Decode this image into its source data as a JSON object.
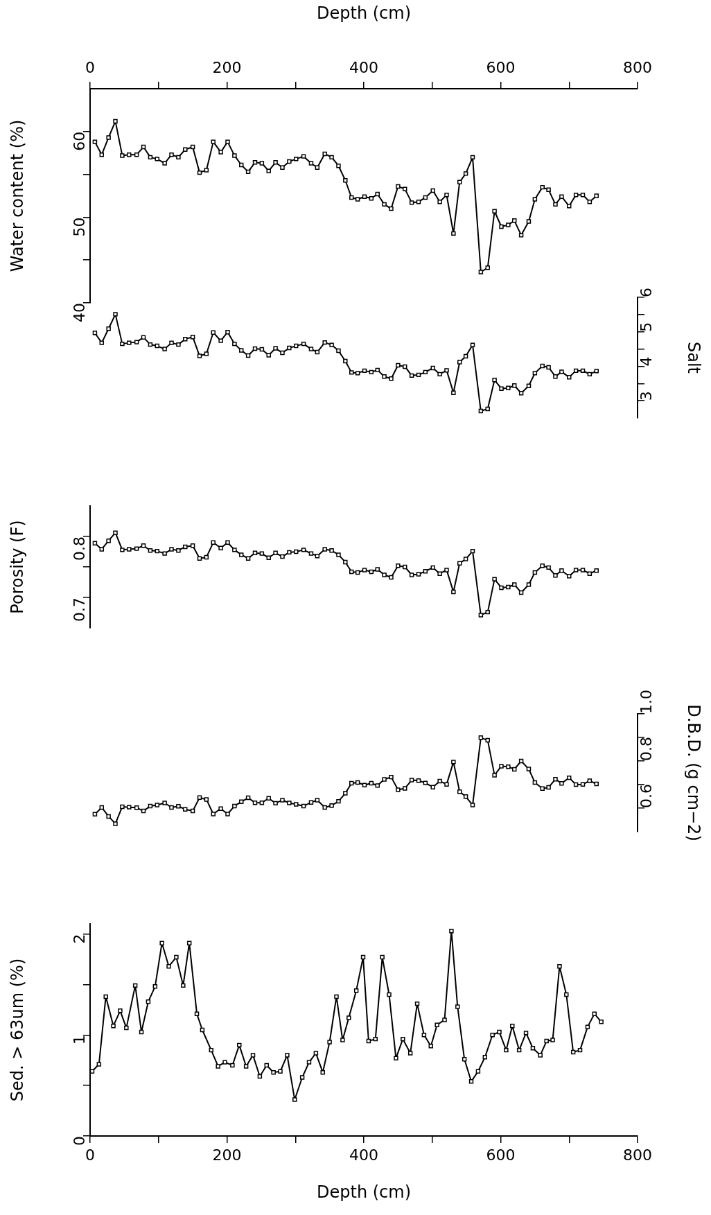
{
  "chart_data": [
    {
      "type": "line",
      "xlabel": "Depth (cm)",
      "ylabel": "Water content (%)",
      "xlim": [
        0,
        800
      ],
      "xticks": [
        0,
        {
          "value": 100,
          "label": null
        },
        200,
        {
          "value": 300,
          "label": null
        },
        400,
        {
          "value": 500,
          "label": null
        },
        600,
        {
          "value": 700,
          "label": null
        },
        800
      ],
      "ylim": [
        40,
        65
      ],
      "yticks": [
        40,
        {
          "value": 45,
          "label": null
        },
        50,
        {
          "value": 55,
          "label": null
        },
        60
      ],
      "marker": "square",
      "line_style": "solid",
      "legend": false,
      "grid": false,
      "x": [
        7,
        17,
        27,
        37,
        47,
        57,
        68,
        78,
        88,
        98,
        109,
        119,
        129,
        139,
        150,
        160,
        170,
        180,
        191,
        201,
        211,
        221,
        231,
        241,
        251,
        261,
        271,
        281,
        291,
        301,
        312,
        323,
        332,
        343,
        353,
        363,
        373,
        382,
        391,
        401,
        411,
        420,
        430,
        440,
        450,
        460,
        470,
        480,
        490,
        501,
        511,
        521,
        531,
        540,
        549,
        559,
        571,
        581,
        591,
        601,
        611,
        620,
        630,
        641,
        650,
        661,
        670,
        680,
        689,
        700,
        710,
        720,
        730,
        740
      ],
      "series": [
        {
          "color": "#000000",
          "values": [
            58.8,
            57.3,
            59.3,
            61.2,
            57.2,
            57.3,
            57.3,
            58.2,
            57.0,
            56.8,
            56.3,
            57.3,
            57.0,
            57.9,
            58.2,
            55.2,
            55.5,
            58.8,
            57.6,
            58.8,
            57.2,
            56.1,
            55.3,
            56.4,
            56.3,
            55.4,
            56.4,
            55.8,
            56.5,
            56.8,
            57.1,
            56.3,
            55.8,
            57.4,
            57.0,
            56.0,
            54.3,
            52.3,
            52.1,
            52.4,
            52.2,
            52.7,
            51.5,
            51.0,
            53.6,
            53.3,
            51.7,
            51.8,
            52.3,
            53.1,
            51.8,
            52.6,
            48.1,
            54.1,
            55.1,
            57.0,
            43.6,
            44.1,
            50.7,
            48.9,
            49.1,
            49.6,
            47.9,
            49.5,
            52.1,
            53.5,
            53.2,
            51.5,
            52.4,
            51.3,
            52.6,
            52.6,
            51.8,
            52.5
          ]
        }
      ]
    },
    {
      "type": "line",
      "y2label": "Salt",
      "xlim": [
        0,
        800
      ],
      "y2lim": [
        2.5,
        6
      ],
      "y2ticks": [
        3,
        {
          "value": 3.5,
          "label": null
        },
        4,
        {
          "value": 4.5,
          "label": null
        },
        5,
        {
          "value": 5.5,
          "label": null
        },
        6
      ],
      "tick_labels": "y",
      "marker": "square",
      "line_style": "solid",
      "legend": false,
      "grid": false,
      "x": [
        7,
        17,
        27,
        37,
        47,
        57,
        68,
        78,
        88,
        98,
        109,
        119,
        129,
        139,
        150,
        160,
        170,
        180,
        191,
        201,
        211,
        221,
        231,
        241,
        251,
        261,
        271,
        281,
        291,
        301,
        312,
        323,
        332,
        343,
        353,
        363,
        373,
        382,
        391,
        401,
        411,
        420,
        430,
        440,
        450,
        460,
        470,
        480,
        490,
        501,
        511,
        521,
        531,
        540,
        549,
        559,
        571,
        581,
        591,
        601,
        611,
        620,
        630,
        641,
        650,
        661,
        670,
        680,
        689,
        700,
        710,
        720,
        730,
        740
      ],
      "series": [
        {
          "color": "#000000",
          "axis": "y2",
          "values": [
            4.97,
            4.68,
            5.09,
            5.51,
            4.65,
            4.68,
            4.7,
            4.84,
            4.63,
            4.59,
            4.5,
            4.68,
            4.63,
            4.79,
            4.85,
            4.3,
            4.36,
            4.98,
            4.74,
            4.99,
            4.65,
            4.46,
            4.31,
            4.51,
            4.49,
            4.32,
            4.52,
            4.39,
            4.53,
            4.59,
            4.65,
            4.5,
            4.41,
            4.69,
            4.62,
            4.45,
            4.15,
            3.82,
            3.8,
            3.87,
            3.83,
            3.89,
            3.7,
            3.64,
            4.03,
            3.99,
            3.73,
            3.75,
            3.83,
            3.95,
            3.77,
            3.88,
            3.23,
            4.12,
            4.29,
            4.62,
            2.7,
            2.76,
            3.6,
            3.35,
            3.37,
            3.44,
            3.22,
            3.43,
            3.8,
            4.01,
            3.97,
            3.7,
            3.84,
            3.68,
            3.87,
            3.87,
            3.77,
            3.86
          ]
        }
      ]
    },
    {
      "type": "line",
      "ylabel": "Porosity (F)",
      "xlim": [
        0,
        800
      ],
      "ylim": [
        0.65,
        0.85
      ],
      "yticks": [
        0.7,
        {
          "value": 0.75,
          "label": null
        },
        0.8
      ],
      "tick_labels": "y",
      "marker": "square",
      "line_style": "solid",
      "legend": false,
      "grid": false,
      "x": [
        7,
        17,
        27,
        37,
        47,
        57,
        68,
        78,
        88,
        98,
        109,
        119,
        129,
        139,
        150,
        160,
        170,
        180,
        191,
        201,
        211,
        221,
        231,
        241,
        251,
        261,
        271,
        281,
        291,
        301,
        312,
        323,
        332,
        343,
        353,
        363,
        373,
        382,
        391,
        401,
        411,
        420,
        430,
        440,
        450,
        460,
        470,
        480,
        490,
        501,
        511,
        521,
        531,
        540,
        549,
        559,
        571,
        581,
        591,
        601,
        611,
        620,
        630,
        641,
        650,
        661,
        670,
        680,
        689,
        700,
        710,
        720,
        730,
        740
      ],
      "series": [
        {
          "color": "#000000",
          "values": [
            0.789,
            0.779,
            0.793,
            0.806,
            0.778,
            0.779,
            0.78,
            0.785,
            0.777,
            0.776,
            0.772,
            0.779,
            0.777,
            0.783,
            0.785,
            0.764,
            0.766,
            0.79,
            0.781,
            0.79,
            0.778,
            0.77,
            0.764,
            0.773,
            0.772,
            0.765,
            0.773,
            0.767,
            0.774,
            0.775,
            0.778,
            0.772,
            0.768,
            0.779,
            0.777,
            0.77,
            0.758,
            0.742,
            0.741,
            0.745,
            0.742,
            0.746,
            0.737,
            0.733,
            0.752,
            0.75,
            0.737,
            0.738,
            0.743,
            0.749,
            0.739,
            0.745,
            0.709,
            0.756,
            0.763,
            0.776,
            0.671,
            0.676,
            0.73,
            0.716,
            0.717,
            0.721,
            0.708,
            0.721,
            0.741,
            0.752,
            0.749,
            0.736,
            0.744,
            0.735,
            0.745,
            0.745,
            0.739,
            0.744
          ]
        }
      ]
    },
    {
      "type": "line",
      "y2label": "D.B.D. (g cm−2)",
      "xlim": [
        0,
        800
      ],
      "y2lim": [
        0.5,
        1.0
      ],
      "y2ticks": [
        0.6,
        {
          "value": 0.7,
          "label": null
        },
        0.8,
        {
          "value": 0.9,
          "label": null
        },
        {
          "value": 1.0,
          "label": "1.0"
        }
      ],
      "tick_labels": "y",
      "marker": "square",
      "line_style": "solid",
      "legend": false,
      "grid": false,
      "x": [
        7,
        17,
        27,
        37,
        47,
        57,
        68,
        78,
        88,
        98,
        109,
        119,
        129,
        139,
        150,
        160,
        170,
        180,
        191,
        201,
        211,
        221,
        231,
        241,
        251,
        261,
        271,
        281,
        291,
        301,
        312,
        323,
        332,
        343,
        353,
        363,
        373,
        382,
        391,
        401,
        411,
        420,
        430,
        440,
        450,
        460,
        470,
        480,
        490,
        501,
        511,
        521,
        531,
        540,
        549,
        559,
        571,
        581,
        591,
        601,
        611,
        620,
        630,
        641,
        650,
        661,
        670,
        680,
        689,
        700,
        710,
        720,
        730,
        740
      ],
      "series": [
        {
          "color": "#000000",
          "axis": "y2",
          "values": [
            0.574,
            0.603,
            0.565,
            0.534,
            0.606,
            0.604,
            0.602,
            0.588,
            0.609,
            0.613,
            0.622,
            0.603,
            0.608,
            0.595,
            0.588,
            0.645,
            0.637,
            0.575,
            0.598,
            0.575,
            0.609,
            0.627,
            0.644,
            0.623,
            0.623,
            0.642,
            0.621,
            0.634,
            0.622,
            0.616,
            0.609,
            0.624,
            0.634,
            0.603,
            0.611,
            0.629,
            0.663,
            0.706,
            0.709,
            0.698,
            0.706,
            0.696,
            0.722,
            0.732,
            0.678,
            0.684,
            0.719,
            0.717,
            0.707,
            0.689,
            0.715,
            0.701,
            0.796,
            0.67,
            0.649,
            0.613,
            0.899,
            0.888,
            0.74,
            0.778,
            0.776,
            0.765,
            0.8,
            0.766,
            0.709,
            0.683,
            0.688,
            0.723,
            0.705,
            0.729,
            0.7,
            0.701,
            0.716,
            0.703
          ]
        }
      ]
    },
    {
      "type": "line",
      "xlabel": "Depth (cm)",
      "ylabel": "Sed. > 63um (%)",
      "xlim": [
        0,
        800
      ],
      "xticks": [
        0,
        {
          "value": 100,
          "label": null
        },
        200,
        {
          "value": 300,
          "label": null
        },
        400,
        {
          "value": 500,
          "label": null
        },
        600,
        {
          "value": 700,
          "label": null
        },
        800
      ],
      "ylim": [
        0,
        2.1
      ],
      "yticks": [
        0,
        {
          "value": 0.5,
          "label": null
        },
        1,
        {
          "value": 1.5,
          "label": null
        },
        2
      ],
      "marker": "square",
      "line_style": "solid",
      "legend": false,
      "grid": false,
      "x": [
        3,
        13,
        23,
        34,
        44,
        53,
        66,
        75,
        85,
        95,
        105,
        115,
        126,
        136,
        145,
        156,
        164,
        177,
        187,
        197,
        208,
        218,
        228,
        238,
        248,
        258,
        268,
        278,
        288,
        299,
        310,
        320,
        330,
        340,
        350,
        360,
        369,
        378,
        389,
        399,
        407,
        417,
        427,
        437,
        447,
        457,
        468,
        478,
        488,
        498,
        507,
        518,
        528,
        537,
        547,
        557,
        567,
        577,
        588,
        598,
        608,
        617,
        627,
        637,
        647,
        658,
        667,
        676,
        686,
        696,
        706,
        716,
        727,
        737,
        747
      ],
      "series": [
        {
          "color": "#000000",
          "values": [
            0.64,
            0.71,
            1.38,
            1.09,
            1.24,
            1.07,
            1.49,
            1.03,
            1.33,
            1.48,
            1.91,
            1.68,
            1.77,
            1.49,
            1.91,
            1.21,
            1.05,
            0.85,
            0.69,
            0.73,
            0.7,
            0.9,
            0.69,
            0.8,
            0.59,
            0.7,
            0.63,
            0.64,
            0.8,
            0.36,
            0.58,
            0.73,
            0.82,
            0.63,
            0.93,
            1.38,
            0.95,
            1.17,
            1.44,
            1.77,
            0.94,
            0.96,
            1.77,
            1.4,
            0.77,
            0.96,
            0.82,
            1.31,
            1.0,
            0.89,
            1.1,
            1.15,
            2.03,
            1.28,
            0.76,
            0.54,
            0.64,
            0.78,
            1.0,
            1.03,
            0.85,
            1.09,
            0.85,
            1.02,
            0.87,
            0.8,
            0.94,
            0.95,
            1.68,
            1.4,
            0.83,
            0.85,
            1.08,
            1.21,
            1.13
          ]
        }
      ]
    }
  ]
}
